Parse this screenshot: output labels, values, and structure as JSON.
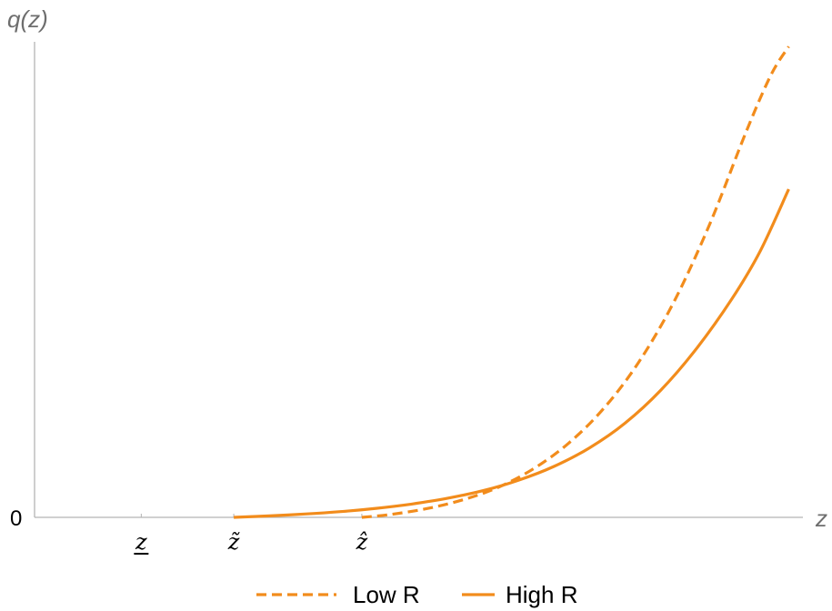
{
  "chart_data": {
    "type": "line",
    "xlabel": "z",
    "ylabel": "q(z)",
    "y_zero_label": "0",
    "x_ticks": [
      {
        "label": "z",
        "decoration": "underline",
        "x": 0.15
      },
      {
        "label": "z̃",
        "decoration": "tilde",
        "x": 0.28
      },
      {
        "label": "ẑ",
        "decoration": "hat",
        "x": 0.46
      }
    ],
    "xlim": [
      0,
      1.08
    ],
    "ylim": [
      0,
      1
    ],
    "series": [
      {
        "name": "Low R",
        "style": "dashed",
        "color": "#f28c1c",
        "x": [
          0.46,
          0.5,
          0.55,
          0.6,
          0.65,
          0.7,
          0.75,
          0.8,
          0.85,
          0.9,
          0.95,
          1.0,
          1.035,
          1.06
        ],
        "y": [
          0.0,
          0.006,
          0.018,
          0.036,
          0.062,
          0.101,
          0.155,
          0.229,
          0.328,
          0.457,
          0.62,
          0.81,
          0.93,
          0.99
        ]
      },
      {
        "name": "High R",
        "style": "solid",
        "color": "#f28c1c",
        "x": [
          0.28,
          0.33,
          0.38,
          0.43,
          0.48,
          0.53,
          0.58,
          0.63,
          0.68,
          0.73,
          0.78,
          0.83,
          0.88,
          0.93,
          0.98,
          1.02,
          1.06
        ],
        "y": [
          0.0,
          0.003,
          0.007,
          0.012,
          0.019,
          0.028,
          0.04,
          0.056,
          0.078,
          0.107,
          0.146,
          0.198,
          0.267,
          0.354,
          0.459,
          0.56,
          0.69
        ]
      }
    ],
    "legend_position": "bottom-center",
    "grid": false
  }
}
